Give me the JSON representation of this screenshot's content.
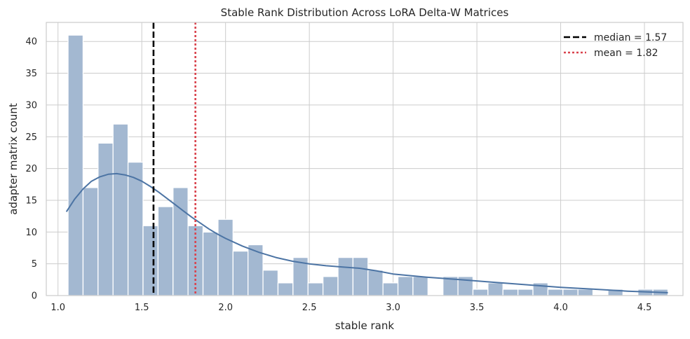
{
  "chart_data": {
    "type": "bar",
    "title": "Stable Rank Distribution Across LoRA Delta-W Matrices",
    "xlabel": "stable rank",
    "ylabel": "adapter matrix count",
    "xlim": [
      0.93,
      4.73
    ],
    "ylim": [
      0,
      43
    ],
    "x_ticks": [
      "1.0",
      "1.5",
      "2.0",
      "2.5",
      "3.0",
      "3.5",
      "4.0",
      "4.5"
    ],
    "y_ticks": [
      "0",
      "5",
      "10",
      "15",
      "20",
      "25",
      "30",
      "35",
      "40"
    ],
    "grid": true,
    "bin_range": [
      1.06,
      4.64
    ],
    "bin_width": 0.0895,
    "counts": [
      41,
      17,
      24,
      27,
      21,
      11,
      14,
      17,
      11,
      10,
      12,
      7,
      8,
      4,
      2,
      6,
      2,
      3,
      6,
      6,
      4,
      2,
      3,
      3,
      0,
      3,
      3,
      1,
      2,
      1,
      1,
      2,
      1,
      1,
      1,
      0,
      1,
      0,
      1,
      1
    ],
    "bar_color": "#a3b8d1",
    "kde": {
      "color": "#4c74a4",
      "x": [
        1.05,
        1.1,
        1.15,
        1.2,
        1.25,
        1.3,
        1.35,
        1.4,
        1.45,
        1.5,
        1.55,
        1.6,
        1.65,
        1.7,
        1.75,
        1.8,
        1.85,
        1.9,
        1.95,
        2.0,
        2.1,
        2.2,
        2.3,
        2.4,
        2.5,
        2.6,
        2.7,
        2.8,
        2.9,
        3.0,
        3.2,
        3.4,
        3.6,
        3.8,
        4.0,
        4.2,
        4.4,
        4.64
      ],
      "y": [
        13.2,
        15.2,
        16.8,
        18.0,
        18.7,
        19.1,
        19.2,
        19.0,
        18.6,
        18.0,
        17.2,
        16.3,
        15.3,
        14.3,
        13.3,
        12.3,
        11.4,
        10.5,
        9.7,
        9.0,
        7.8,
        6.8,
        6.0,
        5.4,
        5.0,
        4.7,
        4.5,
        4.3,
        3.9,
        3.4,
        2.9,
        2.5,
        2.1,
        1.7,
        1.3,
        1.0,
        0.7,
        0.45
      ]
    },
    "lines": [
      {
        "name": "median = 1.57",
        "x": 1.57,
        "style": "dashed",
        "color": "#000000"
      },
      {
        "name": "mean = 1.82",
        "x": 1.82,
        "style": "dotted",
        "color": "#d9434d"
      }
    ],
    "legend_position": "top-right"
  }
}
